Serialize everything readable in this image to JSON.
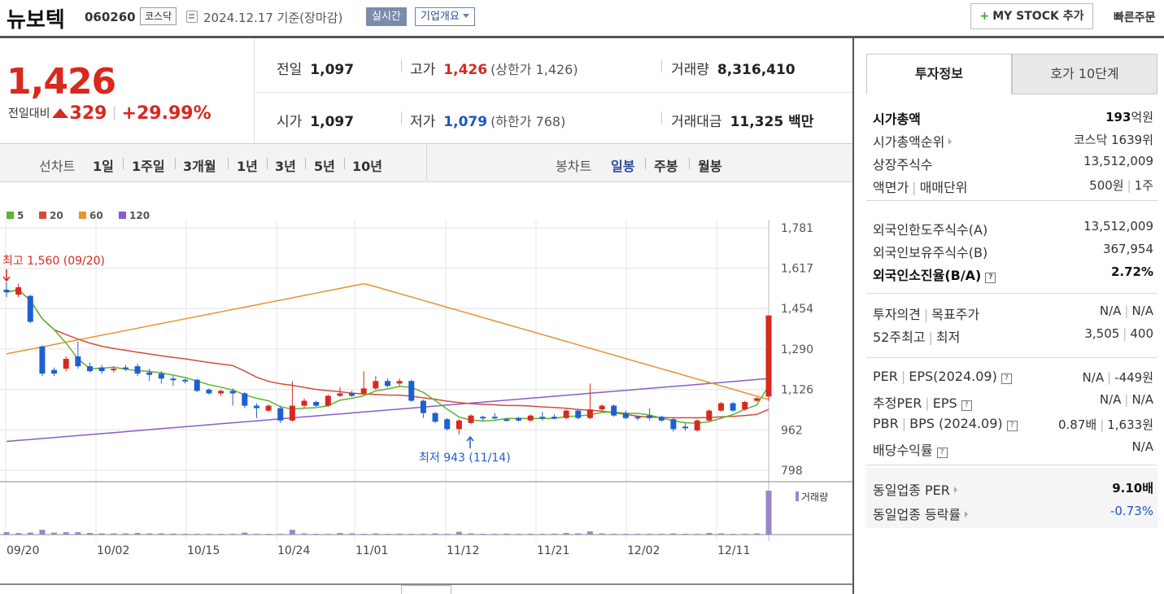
{
  "header": {
    "stock_name": "뉴보텍",
    "stock_code": "060260",
    "market": "코스닥",
    "date": "2024.12.17 기준(장마감)",
    "realtime_label": "실시간",
    "company_label": "기업개요",
    "mystock_label": "MY STOCK 추가",
    "quick_order_label": "빠른주문"
  },
  "price": {
    "current": "1,426",
    "change_label": "전일대비",
    "change": "329",
    "change_pct": "+29.99%"
  },
  "quote": {
    "prev_close_label": "전일",
    "prev_close": "1,097",
    "high_label": "고가",
    "high": "1,426",
    "upper_limit": "(상한가 1,426)",
    "volume_label": "거래량",
    "volume": "8,316,410",
    "open_label": "시가",
    "open": "1,097",
    "low_label": "저가",
    "low": "1,079",
    "lower_limit": "(하한가 768)",
    "amount_label": "거래대금",
    "amount": "11,325 백만"
  },
  "period_bar": {
    "line_label": "선차트",
    "line_periods": [
      "1일",
      "1주일",
      "3개월",
      "1년",
      "3년",
      "5년",
      "10년"
    ],
    "candle_label": "봉차트",
    "candle_periods": [
      "일봉",
      "주봉",
      "월봉"
    ],
    "active_candle": "일봉"
  },
  "chart_data": {
    "type": "candlestick",
    "legend": [
      {
        "name": "5",
        "color": "#5cb531"
      },
      {
        "name": "20",
        "color": "#d24d3c"
      },
      {
        "name": "60",
        "color": "#e6932e"
      },
      {
        "name": "120",
        "color": "#8a5cc9"
      }
    ],
    "y_ticks": [
      "1,781",
      "1,617",
      "1,454",
      "1,290",
      "1,126",
      "962",
      "798"
    ],
    "ylim": [
      798,
      1781
    ],
    "x_ticks": [
      "09/20",
      "10/02",
      "10/15",
      "10/24",
      "11/01",
      "11/12",
      "11/21",
      "12/02",
      "12/11"
    ],
    "high_annotation": "최고 1,560 (09/20)",
    "low_annotation": "최저 943 (11/14)",
    "volume_label": "거래량",
    "candles": [
      {
        "o": 1530,
        "c": 1520,
        "h": 1560,
        "l": 1500
      },
      {
        "o": 1510,
        "c": 1540,
        "h": 1555,
        "l": 1500
      },
      {
        "o": 1505,
        "c": 1400,
        "h": 1510,
        "l": 1395
      },
      {
        "o": 1300,
        "c": 1190,
        "h": 1305,
        "l": 1180
      },
      {
        "o": 1205,
        "c": 1190,
        "h": 1215,
        "l": 1180
      },
      {
        "o": 1210,
        "c": 1250,
        "h": 1260,
        "l": 1200
      },
      {
        "o": 1260,
        "c": 1220,
        "h": 1320,
        "l": 1210
      },
      {
        "o": 1220,
        "c": 1200,
        "h": 1235,
        "l": 1195
      },
      {
        "o": 1215,
        "c": 1200,
        "h": 1225,
        "l": 1190
      },
      {
        "o": 1205,
        "c": 1210,
        "h": 1220,
        "l": 1195
      },
      {
        "o": 1215,
        "c": 1210,
        "h": 1225,
        "l": 1200
      },
      {
        "o": 1220,
        "c": 1190,
        "h": 1230,
        "l": 1180
      },
      {
        "o": 1195,
        "c": 1185,
        "h": 1210,
        "l": 1160
      },
      {
        "o": 1190,
        "c": 1170,
        "h": 1200,
        "l": 1150
      },
      {
        "o": 1170,
        "c": 1165,
        "h": 1180,
        "l": 1140
      },
      {
        "o": 1165,
        "c": 1160,
        "h": 1170,
        "l": 1150
      },
      {
        "o": 1165,
        "c": 1120,
        "h": 1170,
        "l": 1115
      },
      {
        "o": 1125,
        "c": 1110,
        "h": 1130,
        "l": 1105
      },
      {
        "o": 1110,
        "c": 1120,
        "h": 1125,
        "l": 1100
      },
      {
        "o": 1120,
        "c": 1110,
        "h": 1130,
        "l": 1060
      },
      {
        "o": 1110,
        "c": 1060,
        "h": 1115,
        "l": 1050
      },
      {
        "o": 1060,
        "c": 1050,
        "h": 1070,
        "l": 1010
      },
      {
        "o": 1040,
        "c": 1060,
        "h": 1065,
        "l": 1035
      },
      {
        "o": 1050,
        "c": 1000,
        "h": 1060,
        "l": 990
      },
      {
        "o": 1000,
        "c": 1060,
        "h": 1160,
        "l": 995
      },
      {
        "o": 1060,
        "c": 1080,
        "h": 1090,
        "l": 1050
      },
      {
        "o": 1075,
        "c": 1060,
        "h": 1080,
        "l": 1055
      },
      {
        "o": 1060,
        "c": 1100,
        "h": 1105,
        "l": 1055
      },
      {
        "o": 1100,
        "c": 1110,
        "h": 1135,
        "l": 1095
      },
      {
        "o": 1110,
        "c": 1100,
        "h": 1120,
        "l": 1095
      },
      {
        "o": 1110,
        "c": 1130,
        "h": 1200,
        "l": 1105
      },
      {
        "o": 1130,
        "c": 1160,
        "h": 1180,
        "l": 1125
      },
      {
        "o": 1160,
        "c": 1140,
        "h": 1170,
        "l": 1135
      },
      {
        "o": 1150,
        "c": 1160,
        "h": 1170,
        "l": 1140
      },
      {
        "o": 1160,
        "c": 1080,
        "h": 1165,
        "l": 1075
      },
      {
        "o": 1080,
        "c": 1030,
        "h": 1085,
        "l": 1010
      },
      {
        "o": 1030,
        "c": 995,
        "h": 1035,
        "l": 990
      },
      {
        "o": 1005,
        "c": 965,
        "h": 1010,
        "l": 960
      },
      {
        "o": 965,
        "c": 1000,
        "h": 1005,
        "l": 943
      },
      {
        "o": 990,
        "c": 1020,
        "h": 1025,
        "l": 985
      },
      {
        "o": 1015,
        "c": 1010,
        "h": 1020,
        "l": 995
      },
      {
        "o": 1015,
        "c": 1010,
        "h": 1030,
        "l": 1005
      },
      {
        "o": 1005,
        "c": 1000,
        "h": 1010,
        "l": 995
      },
      {
        "o": 1010,
        "c": 1000,
        "h": 1015,
        "l": 995
      },
      {
        "o": 1000,
        "c": 1020,
        "h": 1025,
        "l": 995
      },
      {
        "o": 1015,
        "c": 1010,
        "h": 1035,
        "l": 1000
      },
      {
        "o": 1015,
        "c": 1010,
        "h": 1025,
        "l": 1005
      },
      {
        "o": 1010,
        "c": 1040,
        "h": 1045,
        "l": 1005
      },
      {
        "o": 1040,
        "c": 1010,
        "h": 1045,
        "l": 1005
      },
      {
        "o": 1010,
        "c": 1045,
        "h": 1150,
        "l": 1005
      },
      {
        "o": 1045,
        "c": 1060,
        "h": 1065,
        "l": 1040
      },
      {
        "o": 1060,
        "c": 1020,
        "h": 1065,
        "l": 1015
      },
      {
        "o": 1030,
        "c": 1010,
        "h": 1040,
        "l": 1005
      },
      {
        "o": 1015,
        "c": 1010,
        "h": 1020,
        "l": 1000
      },
      {
        "o": 1020,
        "c": 1010,
        "h": 1050,
        "l": 1000
      },
      {
        "o": 1015,
        "c": 1000,
        "h": 1020,
        "l": 995
      },
      {
        "o": 1005,
        "c": 965,
        "h": 1010,
        "l": 955
      },
      {
        "o": 975,
        "c": 970,
        "h": 990,
        "l": 960
      },
      {
        "o": 960,
        "c": 1000,
        "h": 1005,
        "l": 955
      },
      {
        "o": 1000,
        "c": 1040,
        "h": 1045,
        "l": 995
      },
      {
        "o": 1040,
        "c": 1070,
        "h": 1075,
        "l": 1035
      },
      {
        "o": 1070,
        "c": 1040,
        "h": 1075,
        "l": 1035
      },
      {
        "o": 1045,
        "c": 1075,
        "h": 1080,
        "l": 1040
      },
      {
        "o": 1080,
        "c": 1090,
        "h": 1095,
        "l": 1075
      },
      {
        "o": 1097,
        "c": 1426,
        "h": 1426,
        "l": 1079
      }
    ],
    "volumes": [
      30,
      20,
      25,
      60,
      25,
      30,
      30,
      20,
      15,
      15,
      15,
      20,
      15,
      15,
      12,
      10,
      10,
      10,
      10,
      10,
      25,
      10,
      10,
      10,
      60,
      15,
      10,
      10,
      20,
      15,
      10,
      15,
      10,
      12,
      10,
      10,
      15,
      10,
      35,
      15,
      10,
      10,
      12,
      10,
      10,
      10,
      12,
      20,
      15,
      40,
      15,
      10,
      10,
      10,
      12,
      10,
      15,
      10,
      10,
      20,
      15,
      10,
      10,
      15,
      550
    ]
  },
  "invest_info": {
    "tab_active": "투자정보",
    "tab_other": "호가 10단계",
    "market_cap_label": "시가총액",
    "market_cap_num": "193",
    "market_cap_unit": "억원",
    "rank_label": "시가총액순위",
    "rank": "코스닥 1639위",
    "shares_label": "상장주식수",
    "shares": "13,512,009",
    "par_label": "액면가",
    "unit_label": "매매단위",
    "par": "500원",
    "unit": "1주",
    "foreign_limit_label": "외국인한도주식수(A)",
    "foreign_limit": "13,512,009",
    "foreign_hold_label": "외국인보유주식수(B)",
    "foreign_hold": "367,954",
    "foreign_ratio_label": "외국인소진율(B/A)",
    "foreign_ratio": "2.72%",
    "opinion_label": "투자의견",
    "target_label": "목표주가",
    "opinion": "N/A",
    "target": "N/A",
    "w52_high_label": "52주최고",
    "w52_low_label": "최저",
    "w52_high": "3,505",
    "w52_low": "400",
    "per_label": "PER",
    "eps_label": "EPS(2024.09)",
    "per": "N/A",
    "eps": "-449원",
    "est_per_label": "추정PER",
    "est_eps_label": "EPS",
    "est_per": "N/A",
    "est_eps": "N/A",
    "pbr_label": "PBR",
    "bps_label": "BPS (2024.09)",
    "pbr": "0.87배",
    "bps": "1,633원",
    "dividend_label": "배당수익률",
    "dividend": "N/A",
    "peer_per_label": "동일업종 PER",
    "peer_per": "9.10배",
    "peer_chg_label": "동일업종 등락률",
    "peer_chg": "-0.73%"
  }
}
